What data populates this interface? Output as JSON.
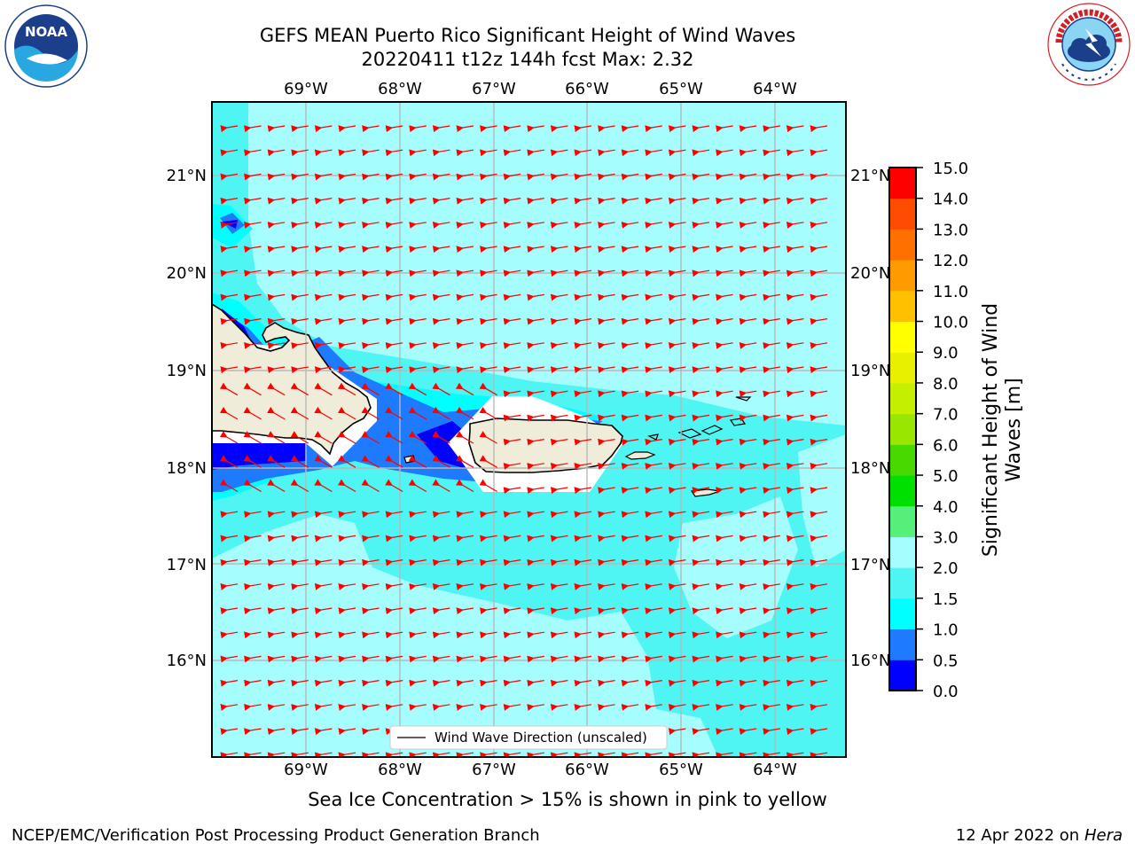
{
  "title_line1": "GEFS MEAN Puerto Rico Significant Height of Wind Waves",
  "title_line2": "20220411 t12z 144h fcst   Max: 2.32",
  "logos": {
    "left_text": "NOAA",
    "left_ring_text": "NATIONAL OCEANIC AND ATMOSPHERIC ADMINISTRATION · U.S. DEPARTMENT OF COMMERCE",
    "right_ring_text": "NATIONAL WEATHER SERVICE"
  },
  "map": {
    "lon_labels": [
      "69°W",
      "68°W",
      "67°W",
      "66°W",
      "65°W",
      "64°W"
    ],
    "lat_labels": [
      "21°N",
      "20°N",
      "19°N",
      "18°N",
      "17°N",
      "16°N"
    ],
    "legend_label": "Wind Wave Direction (unscaled)",
    "arrow_color": "#ff0000",
    "land_color": "#efedd9"
  },
  "colorbar": {
    "label": "Significant Height of Wind Waves [m]",
    "label_line1": "Significant Height of Wind",
    "label_line2": "Waves [m]",
    "ticks": [
      "15.0",
      "14.0",
      "13.0",
      "12.0",
      "11.0",
      "10.0",
      "9.0",
      "8.0",
      "7.0",
      "6.0",
      "5.0",
      "4.0",
      "3.0",
      "2.0",
      "1.5",
      "1.0",
      "0.5",
      "0.0"
    ],
    "colors_bottom_to_top": [
      "#0000ff",
      "#1e7bff",
      "#00ffff",
      "#4ef5f2",
      "#a6fdfd",
      "#55f07a",
      "#00e000",
      "#47d900",
      "#99e600",
      "#c4f000",
      "#e8f000",
      "#ffff00",
      "#ffc000",
      "#ff9a00",
      "#ff7000",
      "#ff4c00",
      "#ff0000"
    ]
  },
  "subcaption": "Sea Ice Concentration > 15% is shown in pink to yellow",
  "credit_left": "NCEP/EMC/Verification Post Processing Product Generation Branch",
  "credit_date": "12 Apr 2022 on ",
  "credit_machine": "Hera"
}
